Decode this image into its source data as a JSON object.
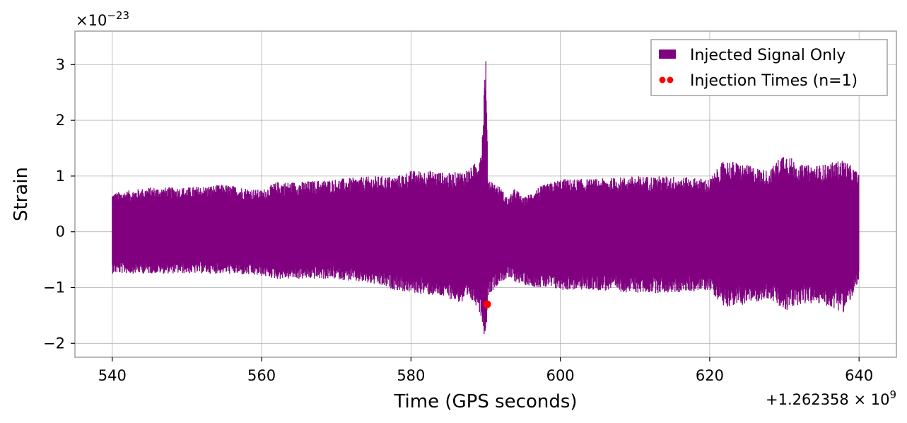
{
  "chart_data": {
    "type": "line",
    "title": "",
    "xlabel": "Time (GPS seconds)",
    "ylabel": "Strain",
    "x_offset_label": "+1.262358 × 10",
    "x_offset_exp": "9",
    "y_scale_label": "×10",
    "y_scale_exp": "−23",
    "xlim": [
      535,
      645
    ],
    "ylim": [
      -2.25,
      3.6
    ],
    "x_ticks": [
      540,
      560,
      580,
      600,
      620,
      640
    ],
    "x_tick_labels": [
      "540",
      "560",
      "580",
      "600",
      "620",
      "640"
    ],
    "y_ticks": [
      -2,
      -1,
      0,
      1,
      2,
      3
    ],
    "y_tick_labels": [
      "−2",
      "−1",
      "0",
      "1",
      "2",
      "3"
    ],
    "grid": true,
    "legend_position": "top-right",
    "series": [
      {
        "name": "Injected Signal Only",
        "color": "#800080",
        "envelope_x": [
          540,
          545,
          550,
          555,
          560,
          562,
          565,
          570,
          575,
          578,
          580,
          583,
          585,
          587,
          588,
          589,
          589.5,
          590,
          590.3,
          591,
          592,
          593,
          594,
          595,
          597,
          600,
          605,
          610,
          615,
          620,
          622,
          625,
          628,
          630,
          632,
          635,
          638,
          640
        ],
        "envelope_upper": [
          0.7,
          0.8,
          0.8,
          0.85,
          0.75,
          0.9,
          0.9,
          0.95,
          1.0,
          1.0,
          1.1,
          1.1,
          1.05,
          1.1,
          1.15,
          1.3,
          1.6,
          3.35,
          1.0,
          0.9,
          0.8,
          0.6,
          0.8,
          0.6,
          0.8,
          0.95,
          0.95,
          1.0,
          1.0,
          0.95,
          1.3,
          1.2,
          1.1,
          1.45,
          1.2,
          1.2,
          1.3,
          1.05
        ],
        "envelope_lower": [
          -0.75,
          -0.75,
          -0.75,
          -0.75,
          -0.8,
          -0.85,
          -0.85,
          -0.85,
          -0.95,
          -1.05,
          -1.1,
          -1.15,
          -1.2,
          -1.3,
          -1.25,
          -1.35,
          -1.6,
          -2.0,
          -1.15,
          -1.05,
          -0.9,
          -0.85,
          -0.9,
          -0.95,
          -1.0,
          -1.05,
          -1.05,
          -1.1,
          -1.1,
          -1.05,
          -1.35,
          -1.3,
          -1.2,
          -1.45,
          -1.3,
          -1.3,
          -1.45,
          -0.95
        ]
      },
      {
        "name": "Injection Times (n=1)",
        "color": "#ff0000",
        "type": "scatter",
        "points": [
          {
            "x": 590.2,
            "y": -1.3
          }
        ]
      }
    ]
  }
}
